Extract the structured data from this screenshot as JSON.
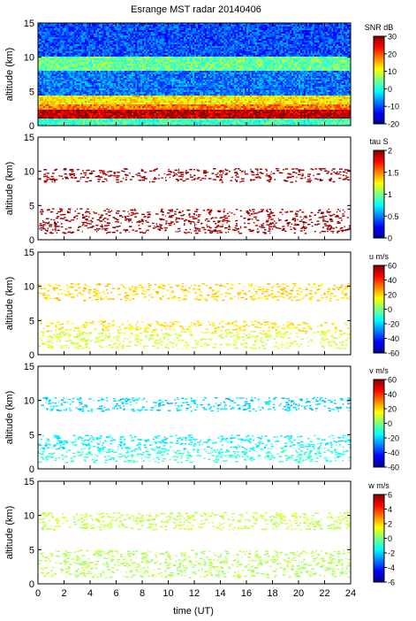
{
  "title": "Esrange MST radar 20140406",
  "xlabel": "time (UT)",
  "chart_data": {
    "type": "heatmap",
    "x": {
      "range": [
        0,
        24
      ],
      "ticks": [
        0,
        2,
        4,
        6,
        8,
        10,
        12,
        14,
        16,
        18,
        20,
        22,
        24
      ],
      "tick_labels": [
        "0",
        "2",
        "4",
        "6",
        "8",
        "10",
        "12",
        "14",
        "16",
        "18",
        "20",
        "22",
        "24"
      ]
    },
    "panels": [
      {
        "id": "snr",
        "ylabel": "altitude (km)",
        "yrange": [
          0,
          15
        ],
        "yticks": [
          "0",
          "5",
          "10",
          "15"
        ],
        "colorbar_label": "SNR dB",
        "crange": [
          -20,
          30
        ],
        "cticks": [
          "-20",
          "-10",
          "0",
          "10",
          "20",
          "30"
        ],
        "layers": [
          {
            "alt": [
              0,
              1.0
            ],
            "value": 2
          },
          {
            "alt": [
              1.0,
              2.2
            ],
            "value": 27
          },
          {
            "alt": [
              2.2,
              3.2
            ],
            "value": 18
          },
          {
            "alt": [
              3.2,
              4.5
            ],
            "value": 12
          },
          {
            "alt": [
              4.5,
              8.0
            ],
            "value": -8
          },
          {
            "alt": [
              8.0,
              10.0
            ],
            "value": 4
          },
          {
            "alt": [
              10.0,
              15.0
            ],
            "value": -10
          }
        ]
      },
      {
        "id": "tau",
        "ylabel": "altitude (km)",
        "yrange": [
          0,
          15
        ],
        "yticks": [
          "0",
          "5",
          "10",
          "15"
        ],
        "colorbar_label": "tau S",
        "crange": [
          0,
          2
        ],
        "cticks": [
          "0",
          "0.5",
          "1",
          "1.5",
          "2"
        ],
        "layers": [
          {
            "alt": [
              1.0,
              4.6
            ],
            "value": 1.95
          },
          {
            "alt": [
              8.5,
              10.5
            ],
            "value": 1.95
          }
        ]
      },
      {
        "id": "u",
        "ylabel": "altitude (km)",
        "yrange": [
          0,
          15
        ],
        "yticks": [
          "0",
          "5",
          "10",
          "15"
        ],
        "colorbar_label": "u m/s",
        "crange": [
          -60,
          60
        ],
        "cticks": [
          "-60",
          "-40",
          "-20",
          "0",
          "20",
          "40",
          "60"
        ],
        "layers": [
          {
            "alt": [
              1.0,
              3.5
            ],
            "value": 10
          },
          {
            "alt": [
              3.5,
              5.0
            ],
            "value": 18
          },
          {
            "alt": [
              8.0,
              10.5
            ],
            "value": 20
          }
        ]
      },
      {
        "id": "v",
        "ylabel": "altitude (km)",
        "yrange": [
          0,
          15
        ],
        "yticks": [
          "0",
          "5",
          "10",
          "15"
        ],
        "colorbar_label": "v m/s",
        "crange": [
          -60,
          60
        ],
        "cticks": [
          "-60",
          "-40",
          "-20",
          "0",
          "20",
          "40",
          "60"
        ],
        "layers": [
          {
            "alt": [
              1.0,
              3.0
            ],
            "value": -10
          },
          {
            "alt": [
              3.0,
              5.0
            ],
            "value": -16
          },
          {
            "alt": [
              8.5,
              10.5
            ],
            "value": -20
          }
        ]
      },
      {
        "id": "w",
        "ylabel": "altitude (km)",
        "yrange": [
          0,
          15
        ],
        "yticks": [
          "0",
          "5",
          "10",
          "15"
        ],
        "colorbar_label": "w m/s",
        "crange": [
          -6,
          6
        ],
        "cticks": [
          "-6",
          "-4",
          "-2",
          "0",
          "2",
          "4",
          "6"
        ],
        "layers": [
          {
            "alt": [
              1.0,
              5.0
            ],
            "value": 0.6
          },
          {
            "alt": [
              8.0,
              10.5
            ],
            "value": 0.8
          }
        ]
      }
    ]
  }
}
